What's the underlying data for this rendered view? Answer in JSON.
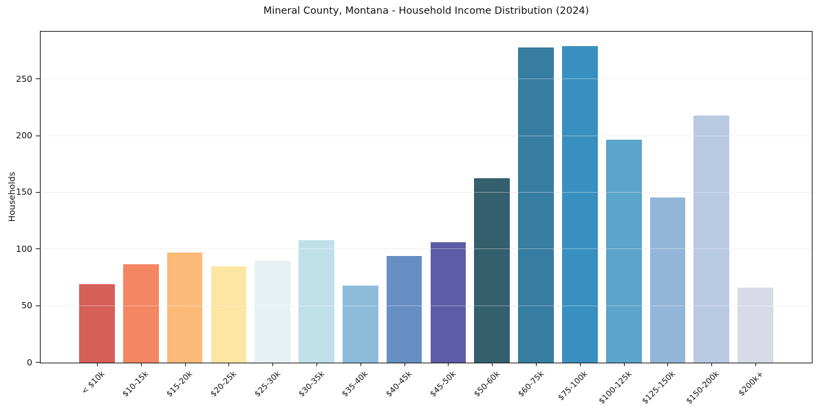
{
  "figure": {
    "background": "#ffffff",
    "axis_color": "#111111",
    "grid_color": "#e8e8e8"
  },
  "chart_data": {
    "type": "bar",
    "title": "Mineral County, Montana - Household Income Distribution (2024)",
    "xlabel": "",
    "ylabel": "Households",
    "categories": [
      "< $10k",
      "$10-15k",
      "$15-20k",
      "$20-25k",
      "$25-30k",
      "$30-35k",
      "$35-40k",
      "$40-45k",
      "$45-50k",
      "$50-60k",
      "$60-75k",
      "$75-100k",
      "$100-125k",
      "$125-150k",
      "$150-200k",
      "$200k+"
    ],
    "values": [
      69,
      87,
      97,
      85,
      90,
      108,
      68,
      94,
      106,
      163,
      278,
      279,
      197,
      146,
      218,
      66
    ],
    "bar_colors": [
      "#d65f57",
      "#f58663",
      "#fbba78",
      "#fde5a3",
      "#e6f1f3",
      "#c0e0e9",
      "#8dbcdb",
      "#688fc3",
      "#5d5ca7",
      "#345f6d",
      "#377ca1",
      "#3990c0",
      "#5ba4ca",
      "#93b5d7",
      "#b8c9e2",
      "#d9dae7"
    ],
    "ylim": [
      0,
      292
    ],
    "yticks": [
      0,
      50,
      100,
      150,
      200,
      250
    ],
    "grid": "horizontal",
    "legend": "none",
    "x_tick_rotation_deg": 45
  }
}
